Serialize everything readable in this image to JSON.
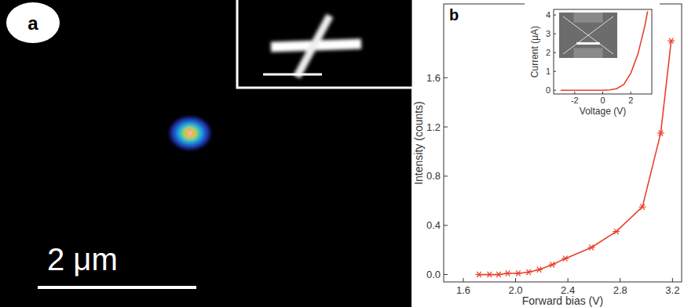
{
  "panel_a": {
    "label": "a",
    "scale_bar": "2 μm"
  },
  "panel_b": {
    "label": "b"
  },
  "chart_data": [
    {
      "type": "line",
      "x_label": "Forward bias (V)",
      "y_label": "Intensity (counts)",
      "x": [
        1.72,
        1.8,
        1.87,
        1.94,
        2.02,
        2.1,
        2.18,
        2.28,
        2.38,
        2.58,
        2.77,
        2.97,
        3.11,
        3.19
      ],
      "values": [
        0,
        0,
        0,
        0.01,
        0.01,
        0.02,
        0.04,
        0.08,
        0.13,
        0.22,
        0.35,
        0.55,
        1.15,
        1.9
      ],
      "color": "#e8412c",
      "marker": "asterisk",
      "xlim": [
        1.45,
        3.27
      ],
      "ylim": [
        -0.06,
        2.2
      ],
      "xticks": [
        1.6,
        {
          "value": 2,
          "label": "2.0"
        },
        2.4,
        2.8,
        3.2
      ],
      "yticks": [
        {
          "value": 0,
          "label": "0.0"
        },
        0.4,
        0.8,
        1.2,
        1.6
      ]
    },
    {
      "type": "line",
      "x_label": "Voltage (V)",
      "y_label": "Current (μA)",
      "x": [
        -3,
        -2,
        -1,
        0,
        0.5,
        1,
        1.5,
        2,
        2.5,
        3,
        3.2
      ],
      "values": [
        0,
        0,
        0,
        0,
        0.02,
        0.08,
        0.3,
        0.9,
        1.9,
        3.4,
        4.2
      ],
      "color": "#e8412c",
      "xlim": [
        -3.5,
        3.5
      ],
      "ylim": [
        -0.2,
        4.3
      ],
      "xticks": [
        -2,
        0,
        2
      ],
      "yticks": [
        0,
        1,
        2,
        3,
        4
      ]
    }
  ]
}
